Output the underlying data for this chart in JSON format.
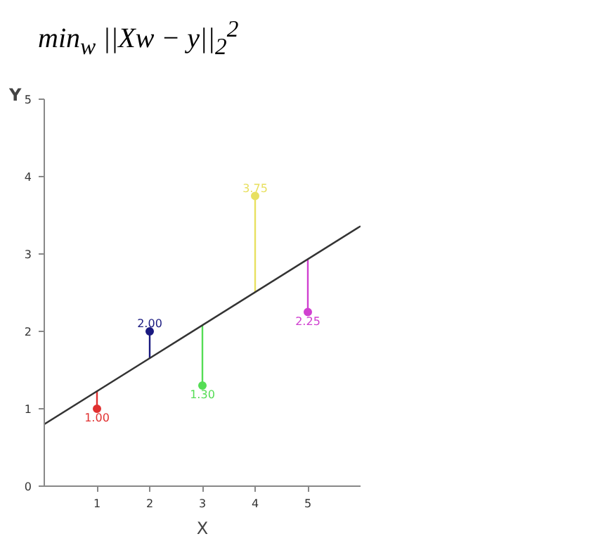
{
  "chart_data": {
    "type": "scatter",
    "title": "min$_{w}$ ||Xw − y||$_{2}$$^{2}$",
    "xlabel": "X",
    "ylabel": "Y",
    "x": [
      1,
      2,
      3,
      4,
      5
    ],
    "series": [
      {
        "colors": [
          "#e03030",
          "#1a1a80",
          "#55dd55",
          "#e8e060",
          "#d040d0"
        ],
        "values": [
          1.0,
          2.0,
          1.3,
          3.75,
          2.25
        ],
        "value_labels": [
          "1.00",
          "2.00",
          "1.30",
          "3.75",
          "2.25"
        ],
        "marker": "circle",
        "errors": [
          [
            1.0,
            1.23
          ],
          [
            1.65,
            2.0
          ],
          [
            1.3,
            2.08
          ],
          [
            2.5,
            3.75
          ],
          [
            2.25,
            2.93
          ]
        ]
      },
      {
        "type": "line",
        "x": [
          0,
          6
        ],
        "values": [
          0.8,
          3.36
        ],
        "color": "#333333"
      }
    ],
    "xlim": [
      0,
      6
    ],
    "ylim": [
      0,
      5
    ],
    "xticks": [
      1,
      2,
      3,
      4,
      5
    ],
    "yticks": [
      0,
      1,
      2,
      3,
      4,
      5
    ],
    "grid": false
  }
}
